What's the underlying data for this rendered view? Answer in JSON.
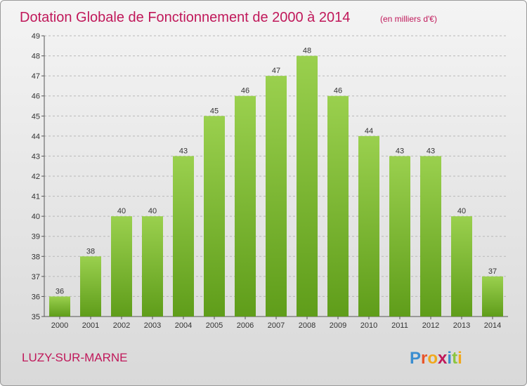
{
  "header": {
    "title": "Dotation Globale de Fonctionnement de 2000 à 2014",
    "unit": "(en milliers d'€)"
  },
  "footer": {
    "commune": "LUZY-SUR-MARNE",
    "logo_letters": [
      "P",
      "r",
      "o",
      "x",
      "i",
      "t",
      "i"
    ],
    "logo_colors": [
      "#3b8ed0",
      "#e8552a",
      "#f0a81c",
      "#c0185a",
      "#3b8ed0",
      "#8bc53f",
      "#f0a81c"
    ]
  },
  "chart_data": {
    "type": "bar",
    "title": "Dotation Globale de Fonctionnement de 2000 à 2014",
    "subtitle": "(en milliers d'€)",
    "xlabel": "",
    "ylabel": "",
    "categories": [
      "2000",
      "2001",
      "2002",
      "2003",
      "2004",
      "2005",
      "2006",
      "2007",
      "2008",
      "2009",
      "2010",
      "2011",
      "2012",
      "2013",
      "2014"
    ],
    "values": [
      36,
      38,
      40,
      40,
      43,
      45,
      46,
      47,
      48,
      46,
      44,
      43,
      43,
      40,
      37
    ],
    "ylim": [
      35,
      49
    ],
    "yticks": [
      35,
      36,
      37,
      38,
      39,
      40,
      41,
      42,
      43,
      44,
      45,
      46,
      47,
      48,
      49
    ],
    "grid": true,
    "grid_style": "dashed horizontal",
    "bar_color_top": "#9ad04e",
    "bar_color_bottom": "#5f9d1a"
  }
}
